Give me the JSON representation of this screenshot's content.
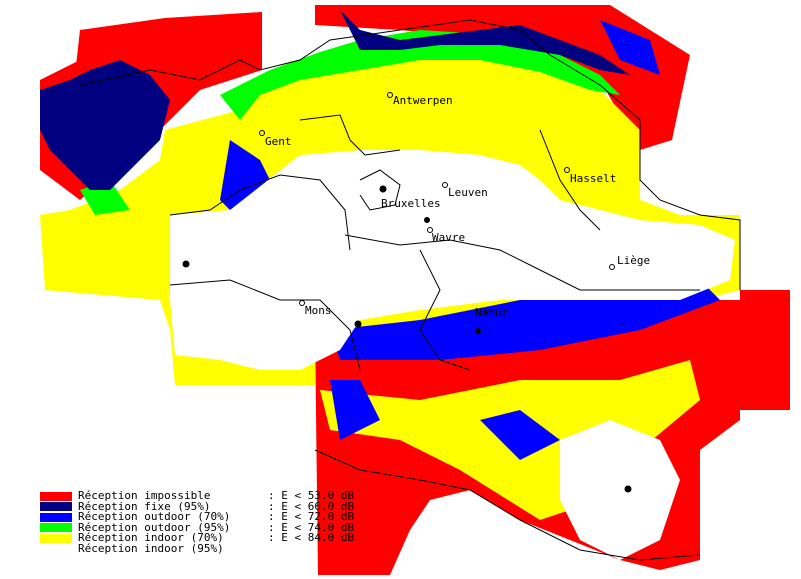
{
  "map": {
    "cities": [
      {
        "id": "antwerpen",
        "name": "Antwerpen"
      },
      {
        "id": "gent",
        "name": "Gent"
      },
      {
        "id": "leuven",
        "name": "Leuven"
      },
      {
        "id": "hasselt",
        "name": "Hasselt"
      },
      {
        "id": "bruxelles",
        "name": "Bruxelles"
      },
      {
        "id": "wavre",
        "name": "Wavre"
      },
      {
        "id": "liege",
        "name": "Liège"
      },
      {
        "id": "mons",
        "name": "Mons"
      },
      {
        "id": "namur",
        "name": "Namur"
      }
    ],
    "colors": {
      "impossible": "#ff0000",
      "fixe": "#000080",
      "outdoor70": "#0000ff",
      "outdoor95": "#00ff00",
      "indoor70": "#ffff00",
      "indoor95": "#ffffff"
    }
  },
  "legend": {
    "items": [
      {
        "label": "Réception impossible",
        "value": ": E < 53.0 dB",
        "color": "#ff0000"
      },
      {
        "label": "Réception fixe (95%)",
        "value": ": E < 66.0 dB",
        "color": "#000080"
      },
      {
        "label": "Réception outdoor (70%)",
        "value": ": E < 72.0 dB",
        "color": "#0000ff"
      },
      {
        "label": "Réception outdoor (95%)",
        "value": ": E < 74.0 dB",
        "color": "#00ff00"
      },
      {
        "label": "Réception indoor (70%)",
        "value": ": E < 84.0 dB",
        "color": "#ffff00"
      },
      {
        "label": "Réception indoor (95%)",
        "value": "",
        "color": ""
      }
    ]
  }
}
